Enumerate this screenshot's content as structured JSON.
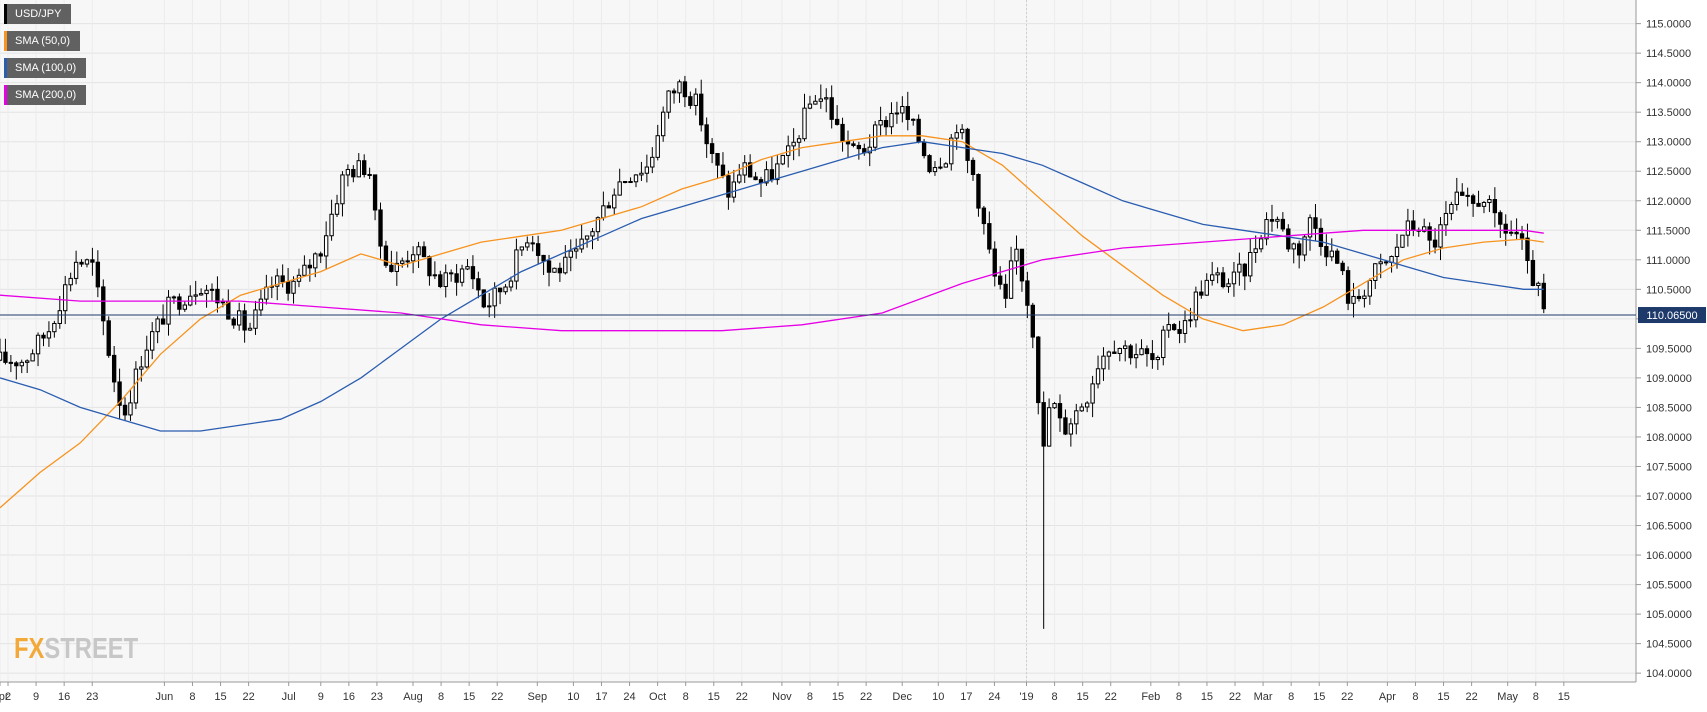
{
  "legend": [
    {
      "label": "USD/JPY",
      "color": "#000000"
    },
    {
      "label": "SMA (50,0)",
      "color": "#f7931e"
    },
    {
      "label": "SMA (100,0)",
      "color": "#2a5db0"
    },
    {
      "label": "SMA (200,0)",
      "color": "#e600e6"
    }
  ],
  "logo": {
    "part1": "FX",
    "part2": "STREET"
  },
  "chart_data": {
    "type": "candlestick",
    "symbol": "USD/JPY",
    "ylim": [
      103.85,
      115.4
    ],
    "y_ticks": [
      "115.0000",
      "114.5000",
      "114.0000",
      "113.5000",
      "113.0000",
      "112.5000",
      "112.0000",
      "111.5000",
      "111.0000",
      "110.5000",
      "110.0000",
      "109.5000",
      "109.0000",
      "108.5000",
      "108.0000",
      "107.5000",
      "107.0000",
      "106.5000",
      "106.0000",
      "105.5000",
      "105.0000",
      "104.5000",
      "104.0000"
    ],
    "x_range_days": [
      0,
      408
    ],
    "x_ticks": [
      {
        "label": "Apr",
        "day": 0
      },
      {
        "label": "2",
        "day": 2
      },
      {
        "label": "9",
        "day": 9
      },
      {
        "label": "16",
        "day": 16
      },
      {
        "label": "23",
        "day": 23
      },
      {
        "label": "Jun",
        "day": 41
      },
      {
        "label": "8",
        "day": 48
      },
      {
        "label": "15",
        "day": 55
      },
      {
        "label": "22",
        "day": 62
      },
      {
        "label": "Jul",
        "day": 72
      },
      {
        "label": "9",
        "day": 80
      },
      {
        "label": "16",
        "day": 87
      },
      {
        "label": "23",
        "day": 94
      },
      {
        "label": "Aug",
        "day": 103
      },
      {
        "label": "8",
        "day": 110
      },
      {
        "label": "15",
        "day": 117
      },
      {
        "label": "22",
        "day": 124
      },
      {
        "label": "Sep",
        "day": 134
      },
      {
        "label": "10",
        "day": 143
      },
      {
        "label": "17",
        "day": 150
      },
      {
        "label": "24",
        "day": 157
      },
      {
        "label": "Oct",
        "day": 164
      },
      {
        "label": "8",
        "day": 171
      },
      {
        "label": "15",
        "day": 178
      },
      {
        "label": "22",
        "day": 185
      },
      {
        "label": "Nov",
        "day": 195
      },
      {
        "label": "8",
        "day": 202
      },
      {
        "label": "15",
        "day": 209
      },
      {
        "label": "22",
        "day": 216
      },
      {
        "label": "Dec",
        "day": 225
      },
      {
        "label": "10",
        "day": 234
      },
      {
        "label": "17",
        "day": 241
      },
      {
        "label": "24",
        "day": 248
      },
      {
        "label": "'19",
        "day": 256
      },
      {
        "label": "8",
        "day": 263
      },
      {
        "label": "15",
        "day": 270
      },
      {
        "label": "22",
        "day": 277
      },
      {
        "label": "Feb",
        "day": 287
      },
      {
        "label": "8",
        "day": 294
      },
      {
        "label": "15",
        "day": 301
      },
      {
        "label": "22",
        "day": 308
      },
      {
        "label": "Mar",
        "day": 315
      },
      {
        "label": "8",
        "day": 322
      },
      {
        "label": "15",
        "day": 329
      },
      {
        "label": "22",
        "day": 336
      },
      {
        "label": "Apr",
        "day": 346
      },
      {
        "label": "8",
        "day": 353
      },
      {
        "label": "15",
        "day": 360
      },
      {
        "label": "22",
        "day": 367
      },
      {
        "label": "May",
        "day": 376
      },
      {
        "label": "8",
        "day": 383
      },
      {
        "label": "15",
        "day": 390
      }
    ],
    "year_divider_day": 256,
    "current_price": 110.065,
    "current_price_label": "110.06500",
    "price_anchors": [
      [
        0,
        109.3
      ],
      [
        6,
        109.3
      ],
      [
        12,
        109.8
      ],
      [
        19,
        111.0
      ],
      [
        23,
        110.9
      ],
      [
        29,
        108.8
      ],
      [
        31,
        108.4
      ],
      [
        36,
        109.5
      ],
      [
        42,
        110.2
      ],
      [
        50,
        110.6
      ],
      [
        55,
        110.3
      ],
      [
        62,
        109.8
      ],
      [
        68,
        110.6
      ],
      [
        74,
        110.6
      ],
      [
        80,
        111.2
      ],
      [
        86,
        112.5
      ],
      [
        92,
        112.6
      ],
      [
        94,
        111.4
      ],
      [
        98,
        110.8
      ],
      [
        103,
        111.2
      ],
      [
        110,
        110.6
      ],
      [
        117,
        110.9
      ],
      [
        121,
        110.2
      ],
      [
        126,
        110.6
      ],
      [
        132,
        111.5
      ],
      [
        137,
        110.8
      ],
      [
        141,
        110.9
      ],
      [
        144,
        111.1
      ],
      [
        150,
        111.8
      ],
      [
        154,
        112.3
      ],
      [
        158,
        112.5
      ],
      [
        162,
        112.6
      ],
      [
        164,
        113.2
      ],
      [
        167,
        113.8
      ],
      [
        170,
        114.0
      ],
      [
        174,
        113.6
      ],
      [
        177,
        112.8
      ],
      [
        182,
        112.1
      ],
      [
        185,
        112.6
      ],
      [
        190,
        112.3
      ],
      [
        193,
        112.5
      ],
      [
        197,
        112.8
      ],
      [
        200,
        113.3
      ],
      [
        203,
        113.8
      ],
      [
        206,
        113.7
      ],
      [
        209,
        113.2
      ],
      [
        213,
        112.8
      ],
      [
        216,
        112.9
      ],
      [
        220,
        113.3
      ],
      [
        224,
        113.6
      ],
      [
        228,
        113.2
      ],
      [
        232,
        112.6
      ],
      [
        236,
        112.8
      ],
      [
        239,
        113.4
      ],
      [
        241,
        112.7
      ],
      [
        243,
        112.4
      ],
      [
        245,
        111.7
      ],
      [
        248,
        110.7
      ],
      [
        251,
        110.2
      ],
      [
        253,
        111.3
      ],
      [
        256,
        110.4
      ],
      [
        258,
        109.7
      ],
      [
        260,
        107.6
      ],
      [
        262,
        108.7
      ],
      [
        265,
        108.1
      ],
      [
        268,
        108.4
      ],
      [
        271,
        108.7
      ],
      [
        274,
        109.3
      ],
      [
        277,
        109.6
      ],
      [
        281,
        109.5
      ],
      [
        285,
        109.4
      ],
      [
        289,
        109.2
      ],
      [
        291,
        110.0
      ],
      [
        295,
        109.8
      ],
      [
        299,
        110.5
      ],
      [
        303,
        110.7
      ],
      [
        307,
        110.6
      ],
      [
        311,
        110.9
      ],
      [
        315,
        111.6
      ],
      [
        318,
        111.8
      ],
      [
        321,
        111.3
      ],
      [
        324,
        111.2
      ],
      [
        327,
        111.7
      ],
      [
        330,
        111.3
      ],
      [
        334,
        110.9
      ],
      [
        337,
        110.2
      ],
      [
        340,
        110.5
      ],
      [
        343,
        110.8
      ],
      [
        347,
        111.0
      ],
      [
        350,
        111.5
      ],
      [
        354,
        111.6
      ],
      [
        357,
        111.2
      ],
      [
        360,
        111.6
      ],
      [
        363,
        112.0
      ],
      [
        367,
        111.9
      ],
      [
        370,
        112.1
      ],
      [
        373,
        111.6
      ],
      [
        376,
        111.5
      ],
      [
        379,
        111.4
      ],
      [
        381,
        110.8
      ],
      [
        383,
        110.6
      ],
      [
        385,
        110.1
      ]
    ],
    "candle_count": 285,
    "series": [
      {
        "name": "SMA (50,0)",
        "color": "#f7931e",
        "points": [
          [
            0,
            106.8
          ],
          [
            10,
            107.4
          ],
          [
            20,
            107.9
          ],
          [
            30,
            108.6
          ],
          [
            40,
            109.4
          ],
          [
            50,
            110.0
          ],
          [
            60,
            110.4
          ],
          [
            70,
            110.6
          ],
          [
            80,
            110.8
          ],
          [
            90,
            111.1
          ],
          [
            100,
            110.9
          ],
          [
            110,
            111.1
          ],
          [
            120,
            111.3
          ],
          [
            130,
            111.4
          ],
          [
            140,
            111.5
          ],
          [
            150,
            111.7
          ],
          [
            160,
            111.9
          ],
          [
            170,
            112.2
          ],
          [
            180,
            112.4
          ],
          [
            190,
            112.7
          ],
          [
            200,
            112.9
          ],
          [
            210,
            113.0
          ],
          [
            220,
            113.1
          ],
          [
            230,
            113.1
          ],
          [
            240,
            113.0
          ],
          [
            250,
            112.6
          ],
          [
            260,
            112.0
          ],
          [
            270,
            111.4
          ],
          [
            280,
            110.9
          ],
          [
            290,
            110.4
          ],
          [
            300,
            110.0
          ],
          [
            310,
            109.8
          ],
          [
            320,
            109.9
          ],
          [
            330,
            110.2
          ],
          [
            340,
            110.6
          ],
          [
            350,
            111.0
          ],
          [
            360,
            111.2
          ],
          [
            370,
            111.3
          ],
          [
            380,
            111.35
          ],
          [
            385,
            111.3
          ]
        ]
      },
      {
        "name": "SMA (100,0)",
        "color": "#2a5db0",
        "points": [
          [
            0,
            109.0
          ],
          [
            10,
            108.8
          ],
          [
            20,
            108.5
          ],
          [
            30,
            108.3
          ],
          [
            40,
            108.1
          ],
          [
            50,
            108.1
          ],
          [
            60,
            108.2
          ],
          [
            70,
            108.3
          ],
          [
            80,
            108.6
          ],
          [
            90,
            109.0
          ],
          [
            100,
            109.5
          ],
          [
            110,
            110.0
          ],
          [
            120,
            110.4
          ],
          [
            130,
            110.8
          ],
          [
            140,
            111.1
          ],
          [
            150,
            111.4
          ],
          [
            160,
            111.7
          ],
          [
            170,
            111.9
          ],
          [
            180,
            112.1
          ],
          [
            190,
            112.3
          ],
          [
            200,
            112.5
          ],
          [
            210,
            112.7
          ],
          [
            220,
            112.9
          ],
          [
            230,
            113.0
          ],
          [
            240,
            112.9
          ],
          [
            250,
            112.8
          ],
          [
            260,
            112.6
          ],
          [
            270,
            112.3
          ],
          [
            280,
            112.0
          ],
          [
            290,
            111.8
          ],
          [
            300,
            111.6
          ],
          [
            310,
            111.5
          ],
          [
            320,
            111.4
          ],
          [
            330,
            111.3
          ],
          [
            340,
            111.1
          ],
          [
            350,
            110.9
          ],
          [
            360,
            110.7
          ],
          [
            370,
            110.6
          ],
          [
            380,
            110.5
          ],
          [
            385,
            110.5
          ]
        ]
      },
      {
        "name": "SMA (200,0)",
        "color": "#e600e6",
        "points": [
          [
            0,
            110.4
          ],
          [
            20,
            110.3
          ],
          [
            40,
            110.3
          ],
          [
            60,
            110.3
          ],
          [
            80,
            110.2
          ],
          [
            100,
            110.1
          ],
          [
            120,
            109.9
          ],
          [
            140,
            109.8
          ],
          [
            160,
            109.8
          ],
          [
            180,
            109.8
          ],
          [
            200,
            109.9
          ],
          [
            220,
            110.1
          ],
          [
            240,
            110.6
          ],
          [
            260,
            111.0
          ],
          [
            280,
            111.2
          ],
          [
            300,
            111.3
          ],
          [
            320,
            111.4
          ],
          [
            340,
            111.5
          ],
          [
            360,
            111.5
          ],
          [
            370,
            111.5
          ],
          [
            380,
            111.5
          ],
          [
            385,
            111.45
          ]
        ]
      }
    ],
    "grid": true
  }
}
